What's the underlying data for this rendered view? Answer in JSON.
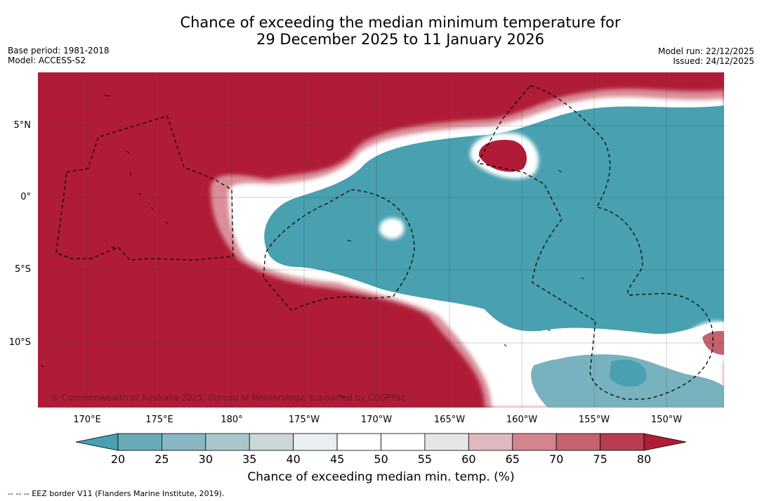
{
  "title": {
    "line1": "Chance of exceeding the median minimum temperature for",
    "line2": "29 December 2025 to 11 January 2026"
  },
  "meta": {
    "base_period": "Base period: 1981-2018",
    "model": "Model: ACCESS-S2",
    "model_run": "Model run: 22/12/2025",
    "issued": "Issued: 24/12/2025"
  },
  "map": {
    "lat_labels": [
      "5°N",
      "0°",
      "5°S",
      "10°S"
    ],
    "lon_labels": [
      "170°E",
      "175°E",
      "180°",
      "175°W",
      "170°W",
      "165°W",
      "160°W",
      "155°W",
      "150°W"
    ],
    "copyright": "© Commonwealth of Australia 2025, Bureau of Meteorology, supported by COSPPac",
    "colors": {
      "warm": "#b01c37",
      "cool": "#48a0b1",
      "neutral": "#ffffff"
    }
  },
  "colorbar": {
    "label": "Chance of exceeding median min. temp. (%)",
    "ticks": [
      "20",
      "25",
      "30",
      "35",
      "40",
      "45",
      "50",
      "55",
      "60",
      "65",
      "70",
      "75",
      "80"
    ],
    "colors": [
      "#6aaab8",
      "#88b7c3",
      "#aac6cd",
      "#cbd6d9",
      "#e9eef0",
      "#ffffff",
      "#ffffff",
      "#e6e6e6",
      "#e0b8bf",
      "#d4848f",
      "#c46270",
      "#b83e4f"
    ],
    "under_color": "#48a0b1",
    "over_color": "#b01c37"
  },
  "legend_note": "--  --  -- EEZ border V11 (Flanders Marine Institute, 2019)."
}
